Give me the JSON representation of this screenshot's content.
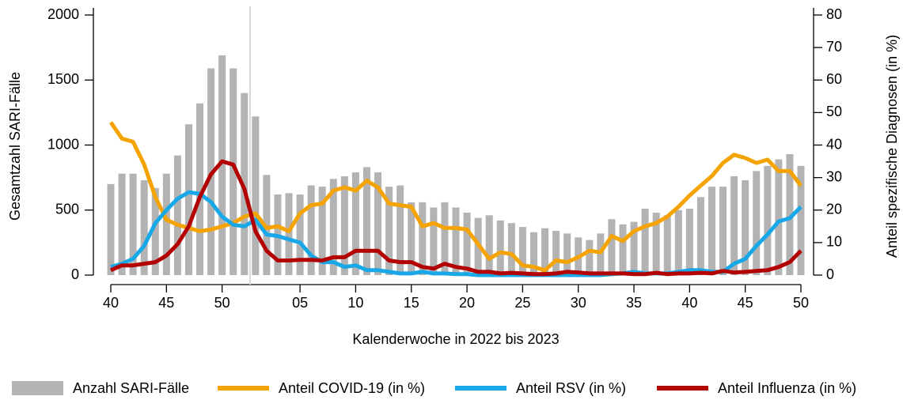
{
  "chart_data": {
    "type": "bar",
    "y_label": "Gesamtzahl SARI-Fälle",
    "y2_label": "Anteil spezifische Diagnosen (in %)",
    "x_label": "Kalenderwoche in 2022 bis 2023",
    "categories": [
      "40",
      null,
      null,
      null,
      null,
      "45",
      null,
      null,
      null,
      null,
      "50",
      null,
      null,
      null,
      null,
      null,
      null,
      "05",
      null,
      null,
      null,
      null,
      "10",
      null,
      null,
      null,
      null,
      "15",
      null,
      null,
      null,
      null,
      "20",
      null,
      null,
      null,
      null,
      "25",
      null,
      null,
      null,
      null,
      "30",
      null,
      null,
      null,
      null,
      "35",
      null,
      null,
      null,
      null,
      "40",
      null,
      null,
      null,
      null,
      "45",
      null,
      null,
      null,
      null,
      "50"
    ],
    "ylim": [
      0,
      2000
    ],
    "yticks": [
      0,
      500,
      1000,
      1500,
      2000
    ],
    "y2lim": [
      0,
      80
    ],
    "y2ticks": [
      0,
      10,
      20,
      30,
      40,
      50,
      60,
      70,
      80
    ],
    "legend": "bottom",
    "series": [
      {
        "name": "Anzahl SARI-Fälle",
        "type": "bar",
        "color": "#b3b3b3",
        "axis": "y",
        "values": [
          700,
          780,
          780,
          730,
          670,
          780,
          920,
          1160,
          1320,
          1590,
          1690,
          1590,
          1400,
          1220,
          770,
          620,
          630,
          620,
          690,
          680,
          740,
          760,
          790,
          830,
          790,
          680,
          690,
          560,
          560,
          520,
          560,
          520,
          480,
          440,
          460,
          420,
          400,
          370,
          330,
          360,
          340,
          320,
          290,
          270,
          320,
          430,
          390,
          410,
          510,
          480,
          460,
          500,
          510,
          600,
          680,
          680,
          760,
          730,
          800,
          840,
          890,
          930,
          840
        ]
      },
      {
        "name": "Anteil COVID-19 (in %)",
        "type": "line",
        "color": "#f5a300",
        "axis": "y2",
        "values": [
          47,
          42,
          41,
          34,
          24,
          17,
          15.5,
          14.5,
          13.5,
          14,
          15,
          16,
          18,
          19,
          14.5,
          15,
          13.5,
          19,
          21.5,
          22,
          26,
          27,
          26,
          29,
          27,
          22,
          21.5,
          21,
          15,
          16,
          14.5,
          14.5,
          14,
          9.5,
          5,
          7,
          6.5,
          3,
          2.5,
          1.5,
          4.5,
          4,
          5.5,
          7.5,
          7,
          12,
          10.5,
          13.5,
          15,
          16,
          18,
          21,
          24.5,
          27.5,
          30.5,
          34.5,
          37,
          36,
          34.5,
          35.5,
          32,
          32,
          27.5
        ]
      },
      {
        "name": "Anteil RSV (in %)",
        "type": "line",
        "color": "#18a8e8",
        "axis": "y2",
        "values": [
          2.5,
          3.5,
          5,
          9,
          16,
          20,
          23.5,
          25.5,
          25,
          22.5,
          18,
          15.5,
          15,
          17,
          12.5,
          12,
          11,
          10,
          6,
          4,
          4,
          2.5,
          3,
          1.5,
          1.5,
          1,
          0.5,
          0.5,
          1,
          0.5,
          0.5,
          0.3,
          0.3,
          0,
          0,
          0,
          0,
          0,
          0,
          0,
          0,
          0,
          0,
          0,
          0,
          0.3,
          0.5,
          1,
          0.5,
          0.5,
          0.5,
          1,
          1.5,
          1.5,
          1,
          1,
          3.5,
          5,
          9,
          12.5,
          16.5,
          17.5,
          21
        ]
      },
      {
        "name": "Anteil Influenza (in %)",
        "type": "line",
        "color": "#b30000",
        "axis": "y2",
        "values": [
          1.5,
          3,
          3,
          3.5,
          4,
          6,
          9.5,
          15,
          24,
          31,
          35,
          34,
          26.5,
          13.5,
          7.5,
          4.5,
          4.5,
          4.7,
          4.7,
          4.5,
          5.5,
          5.5,
          7.5,
          7.5,
          7.5,
          4.5,
          4,
          4,
          2.5,
          2,
          3.5,
          2.5,
          2,
          1,
          1,
          0.5,
          0.7,
          0.5,
          0.3,
          0.3,
          0.5,
          1,
          0.8,
          0.5,
          0.5,
          0.5,
          0.5,
          0.3,
          0.3,
          0.7,
          0.3,
          0.5,
          0.5,
          0.7,
          0.5,
          1.3,
          0.8,
          1,
          1.3,
          1.5,
          2.5,
          4,
          7.5
        ]
      }
    ]
  }
}
